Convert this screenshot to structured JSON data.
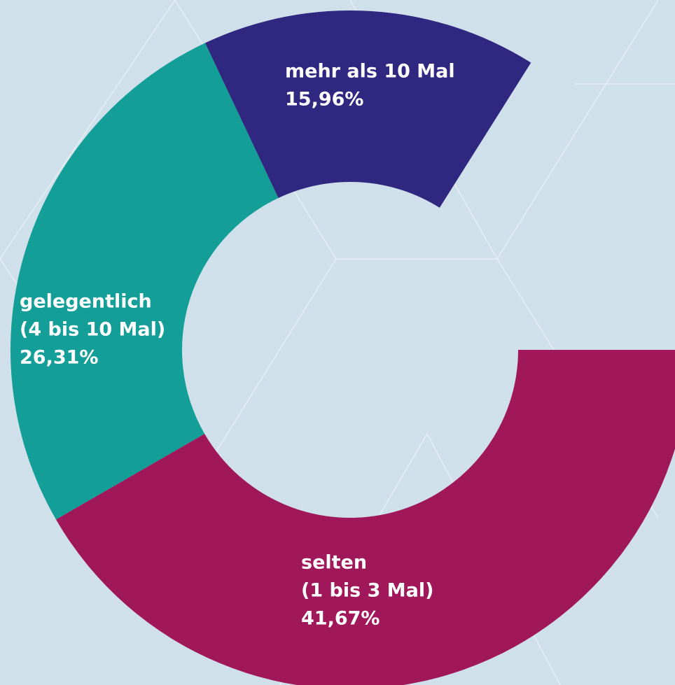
{
  "chart_data": {
    "type": "donut",
    "categories": [
      [
        "selten",
        "(1 bis 3 Mal)"
      ],
      [
        "gelegentlich",
        "(4 bis 10 Mal)"
      ],
      [
        "mehr als 10 Mal"
      ]
    ],
    "values": [
      41.67,
      26.31,
      15.96
    ],
    "value_labels": [
      "41,67%",
      "26,31%",
      "15,96%"
    ],
    "colors": [
      "#a0175a",
      "#149e98",
      "#302781"
    ]
  }
}
